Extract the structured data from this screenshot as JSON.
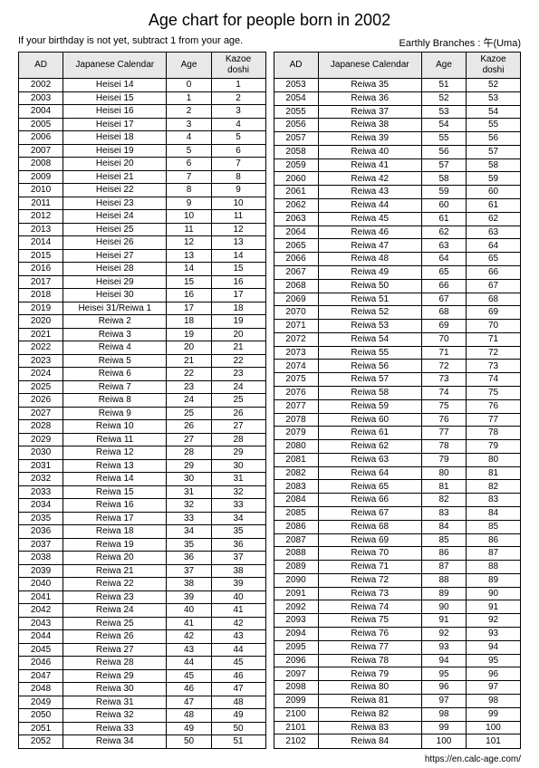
{
  "title": "Age chart for people born in 2002",
  "note": "If your birthday is not yet, subtract 1 from your age.",
  "branches": "Earthly Branches : 午(Uma)",
  "footer": "https://en.calc-age.com/",
  "columns": [
    "AD",
    "Japanese Calendar",
    "Age",
    "Kazoe doshi"
  ],
  "colors": {
    "header_bg": "#e8e8e8",
    "border": "#000000"
  },
  "left": [
    [
      "2002",
      "Heisei 14",
      "0",
      "1"
    ],
    [
      "2003",
      "Heisei 15",
      "1",
      "2"
    ],
    [
      "2004",
      "Heisei 16",
      "2",
      "3"
    ],
    [
      "2005",
      "Heisei 17",
      "3",
      "4"
    ],
    [
      "2006",
      "Heisei 18",
      "4",
      "5"
    ],
    [
      "2007",
      "Heisei 19",
      "5",
      "6"
    ],
    [
      "2008",
      "Heisei 20",
      "6",
      "7"
    ],
    [
      "2009",
      "Heisei 21",
      "7",
      "8"
    ],
    [
      "2010",
      "Heisei 22",
      "8",
      "9"
    ],
    [
      "2011",
      "Heisei 23",
      "9",
      "10"
    ],
    [
      "2012",
      "Heisei 24",
      "10",
      "11"
    ],
    [
      "2013",
      "Heisei 25",
      "11",
      "12"
    ],
    [
      "2014",
      "Heisei 26",
      "12",
      "13"
    ],
    [
      "2015",
      "Heisei 27",
      "13",
      "14"
    ],
    [
      "2016",
      "Heisei 28",
      "14",
      "15"
    ],
    [
      "2017",
      "Heisei 29",
      "15",
      "16"
    ],
    [
      "2018",
      "Heisei 30",
      "16",
      "17"
    ],
    [
      "2019",
      "Heisei 31/Reiwa 1",
      "17",
      "18"
    ],
    [
      "2020",
      "Reiwa 2",
      "18",
      "19"
    ],
    [
      "2021",
      "Reiwa 3",
      "19",
      "20"
    ],
    [
      "2022",
      "Reiwa 4",
      "20",
      "21"
    ],
    [
      "2023",
      "Reiwa 5",
      "21",
      "22"
    ],
    [
      "2024",
      "Reiwa 6",
      "22",
      "23"
    ],
    [
      "2025",
      "Reiwa 7",
      "23",
      "24"
    ],
    [
      "2026",
      "Reiwa 8",
      "24",
      "25"
    ],
    [
      "2027",
      "Reiwa 9",
      "25",
      "26"
    ],
    [
      "2028",
      "Reiwa 10",
      "26",
      "27"
    ],
    [
      "2029",
      "Reiwa 11",
      "27",
      "28"
    ],
    [
      "2030",
      "Reiwa 12",
      "28",
      "29"
    ],
    [
      "2031",
      "Reiwa 13",
      "29",
      "30"
    ],
    [
      "2032",
      "Reiwa 14",
      "30",
      "31"
    ],
    [
      "2033",
      "Reiwa 15",
      "31",
      "32"
    ],
    [
      "2034",
      "Reiwa 16",
      "32",
      "33"
    ],
    [
      "2035",
      "Reiwa 17",
      "33",
      "34"
    ],
    [
      "2036",
      "Reiwa 18",
      "34",
      "35"
    ],
    [
      "2037",
      "Reiwa 19",
      "35",
      "36"
    ],
    [
      "2038",
      "Reiwa 20",
      "36",
      "37"
    ],
    [
      "2039",
      "Reiwa 21",
      "37",
      "38"
    ],
    [
      "2040",
      "Reiwa 22",
      "38",
      "39"
    ],
    [
      "2041",
      "Reiwa 23",
      "39",
      "40"
    ],
    [
      "2042",
      "Reiwa 24",
      "40",
      "41"
    ],
    [
      "2043",
      "Reiwa 25",
      "41",
      "42"
    ],
    [
      "2044",
      "Reiwa 26",
      "42",
      "43"
    ],
    [
      "2045",
      "Reiwa 27",
      "43",
      "44"
    ],
    [
      "2046",
      "Reiwa 28",
      "44",
      "45"
    ],
    [
      "2047",
      "Reiwa 29",
      "45",
      "46"
    ],
    [
      "2048",
      "Reiwa 30",
      "46",
      "47"
    ],
    [
      "2049",
      "Reiwa 31",
      "47",
      "48"
    ],
    [
      "2050",
      "Reiwa 32",
      "48",
      "49"
    ],
    [
      "2051",
      "Reiwa 33",
      "49",
      "50"
    ],
    [
      "2052",
      "Reiwa 34",
      "50",
      "51"
    ]
  ],
  "right": [
    [
      "2053",
      "Reiwa 35",
      "51",
      "52"
    ],
    [
      "2054",
      "Reiwa 36",
      "52",
      "53"
    ],
    [
      "2055",
      "Reiwa 37",
      "53",
      "54"
    ],
    [
      "2056",
      "Reiwa 38",
      "54",
      "55"
    ],
    [
      "2057",
      "Reiwa 39",
      "55",
      "56"
    ],
    [
      "2058",
      "Reiwa 40",
      "56",
      "57"
    ],
    [
      "2059",
      "Reiwa 41",
      "57",
      "58"
    ],
    [
      "2060",
      "Reiwa 42",
      "58",
      "59"
    ],
    [
      "2061",
      "Reiwa 43",
      "59",
      "60"
    ],
    [
      "2062",
      "Reiwa 44",
      "60",
      "61"
    ],
    [
      "2063",
      "Reiwa 45",
      "61",
      "62"
    ],
    [
      "2064",
      "Reiwa 46",
      "62",
      "63"
    ],
    [
      "2065",
      "Reiwa 47",
      "63",
      "64"
    ],
    [
      "2066",
      "Reiwa 48",
      "64",
      "65"
    ],
    [
      "2067",
      "Reiwa 49",
      "65",
      "66"
    ],
    [
      "2068",
      "Reiwa 50",
      "66",
      "67"
    ],
    [
      "2069",
      "Reiwa 51",
      "67",
      "68"
    ],
    [
      "2070",
      "Reiwa 52",
      "68",
      "69"
    ],
    [
      "2071",
      "Reiwa 53",
      "69",
      "70"
    ],
    [
      "2072",
      "Reiwa 54",
      "70",
      "71"
    ],
    [
      "2073",
      "Reiwa 55",
      "71",
      "72"
    ],
    [
      "2074",
      "Reiwa 56",
      "72",
      "73"
    ],
    [
      "2075",
      "Reiwa 57",
      "73",
      "74"
    ],
    [
      "2076",
      "Reiwa 58",
      "74",
      "75"
    ],
    [
      "2077",
      "Reiwa 59",
      "75",
      "76"
    ],
    [
      "2078",
      "Reiwa 60",
      "76",
      "77"
    ],
    [
      "2079",
      "Reiwa 61",
      "77",
      "78"
    ],
    [
      "2080",
      "Reiwa 62",
      "78",
      "79"
    ],
    [
      "2081",
      "Reiwa 63",
      "79",
      "80"
    ],
    [
      "2082",
      "Reiwa 64",
      "80",
      "81"
    ],
    [
      "2083",
      "Reiwa 65",
      "81",
      "82"
    ],
    [
      "2084",
      "Reiwa 66",
      "82",
      "83"
    ],
    [
      "2085",
      "Reiwa 67",
      "83",
      "84"
    ],
    [
      "2086",
      "Reiwa 68",
      "84",
      "85"
    ],
    [
      "2087",
      "Reiwa 69",
      "85",
      "86"
    ],
    [
      "2088",
      "Reiwa 70",
      "86",
      "87"
    ],
    [
      "2089",
      "Reiwa 71",
      "87",
      "88"
    ],
    [
      "2090",
      "Reiwa 72",
      "88",
      "89"
    ],
    [
      "2091",
      "Reiwa 73",
      "89",
      "90"
    ],
    [
      "2092",
      "Reiwa 74",
      "90",
      "91"
    ],
    [
      "2093",
      "Reiwa 75",
      "91",
      "92"
    ],
    [
      "2094",
      "Reiwa 76",
      "92",
      "93"
    ],
    [
      "2095",
      "Reiwa 77",
      "93",
      "94"
    ],
    [
      "2096",
      "Reiwa 78",
      "94",
      "95"
    ],
    [
      "2097",
      "Reiwa 79",
      "95",
      "96"
    ],
    [
      "2098",
      "Reiwa 80",
      "96",
      "97"
    ],
    [
      "2099",
      "Reiwa 81",
      "97",
      "98"
    ],
    [
      "2100",
      "Reiwa 82",
      "98",
      "99"
    ],
    [
      "2101",
      "Reiwa 83",
      "99",
      "100"
    ],
    [
      "2102",
      "Reiwa 84",
      "100",
      "101"
    ]
  ]
}
